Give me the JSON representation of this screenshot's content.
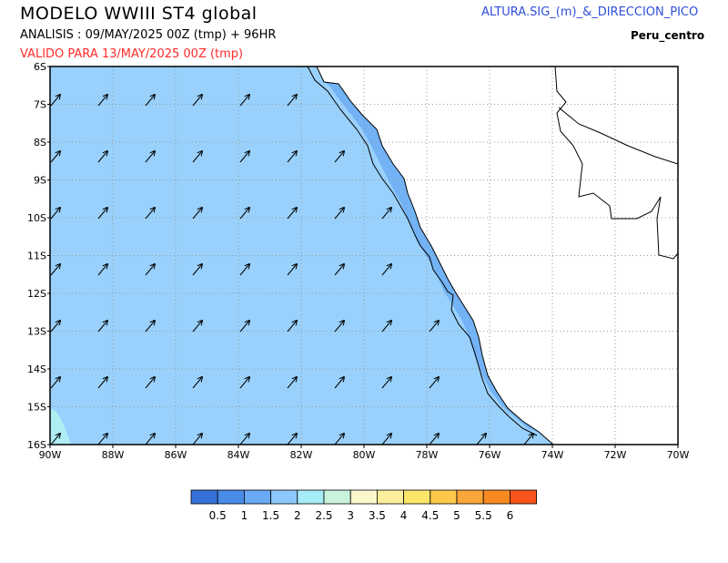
{
  "header": {
    "title": "MODELO WWIII ST4 global",
    "analysis": "ANALISIS : 09/MAY/2025 00Z  (tmp) + 96HR",
    "valid": "VALIDO PARA  13/MAY/2025 00Z  (tmp)",
    "variable": "ALTURA.SIG_(m)_&_DIRECCION_PICO",
    "region": "Peru_centro"
  },
  "map": {
    "lon_range": [
      -90,
      -70
    ],
    "lat_range": [
      -16,
      -6
    ],
    "x_ticks": [
      "90W",
      "88W",
      "86W",
      "84W",
      "82W",
      "80W",
      "78W",
      "76W",
      "74W",
      "72W",
      "70W"
    ],
    "y_ticks": [
      "6S",
      "7S",
      "8S",
      "9S",
      "10S",
      "11S",
      "12S",
      "13S",
      "14S",
      "15S",
      "16S"
    ],
    "grid": "dotted",
    "wave_direction_deg": "toward NE (~55°)",
    "field_colors": {
      "ocean_main": "#99d1fc",
      "coastal_low": "#72b2f5",
      "southwest_corner": "#aeeef3",
      "land": "#ffffff"
    }
  },
  "colorbar": {
    "labels": [
      "0.5",
      "1",
      "1.5",
      "2",
      "2.5",
      "3",
      "3.5",
      "4",
      "4.5",
      "5",
      "5.5",
      "6"
    ],
    "colors": [
      "#3570d8",
      "#4a8be8",
      "#6aa9f5",
      "#8cc8fb",
      "#a6ecf6",
      "#c9f3dc",
      "#fbf7cd",
      "#fcef9c",
      "#fce66a",
      "#fbc84a",
      "#fba638",
      "#f98a22",
      "#f8541c"
    ]
  }
}
